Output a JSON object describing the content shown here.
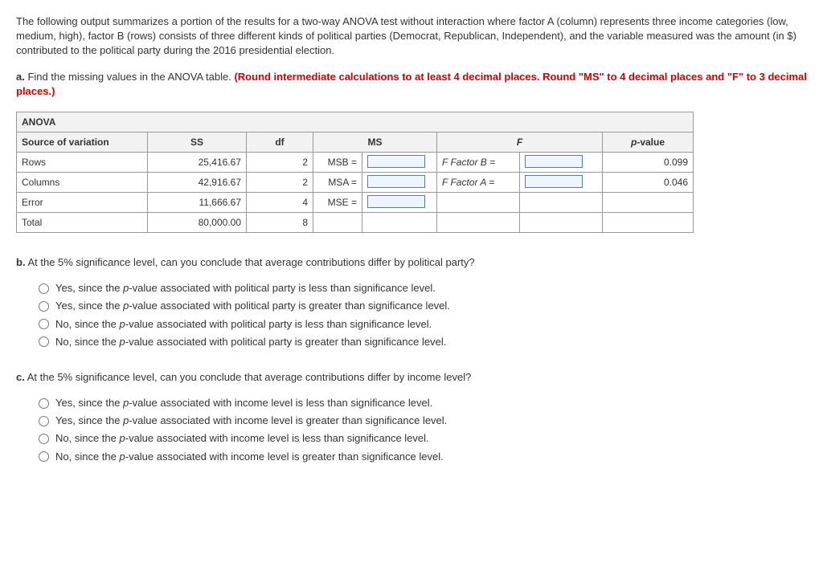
{
  "intro": "The following output summarizes a portion of the results for a two-way ANOVA test without interaction where factor A (column) represents three income categories (low, medium, high), factor B (rows) consists of three different kinds of political parties (Democrat, Republican, Independent), and the variable measured was the amount (in $) contributed to the political party during the 2016 presidential election.",
  "a": {
    "label": "a.",
    "text": " Find the missing values in the ANOVA table. ",
    "red": "(Round intermediate calculations to at least 4 decimal places. Round \"MS\" to 4 decimal places and \"F\" to 3 decimal places.)"
  },
  "anova": {
    "title": "ANOVA",
    "headers": {
      "source": "Source of variation",
      "ss": "SS",
      "df": "df",
      "ms": "MS",
      "f": "F",
      "pvalue": "p-value"
    },
    "rows": [
      {
        "src": "Rows",
        "ss": "25,416.67",
        "df": "2",
        "mslab": "MSB =",
        "flab": "F Factor B =",
        "pvalue": "0.099"
      },
      {
        "src": "Columns",
        "ss": "42,916.67",
        "df": "2",
        "mslab": "MSA =",
        "flab": "F Factor A =",
        "pvalue": "0.046"
      },
      {
        "src": "Error",
        "ss": "11,666.67",
        "df": "4",
        "mslab": "MSE =",
        "flab": "",
        "pvalue": ""
      },
      {
        "src": "Total",
        "ss": "80,000.00",
        "df": "8",
        "mslab": "",
        "flab": "",
        "pvalue": ""
      }
    ]
  },
  "b": {
    "label": "b.",
    "text": " At the 5% significance level, can you conclude that average contributions differ by political party?",
    "options": [
      "Yes, since the p-value associated with political party is less than significance level.",
      "Yes, since the p-value associated with political party is greater than significance level.",
      "No, since the p-value associated with political party is less than significance level.",
      "No, since the p-value associated with political party is greater than significance level."
    ]
  },
  "c": {
    "label": "c.",
    "text": " At the 5% significance level, can you conclude that average contributions differ by income level?",
    "options": [
      "Yes, since the p-value associated with income level is less than significance level.",
      "Yes, since the p-value associated with income level is greater than significance level.",
      "No, since the p-value associated with income level is less than significance level.",
      "No, since the p-value associated with income level is greater than significance level."
    ]
  }
}
